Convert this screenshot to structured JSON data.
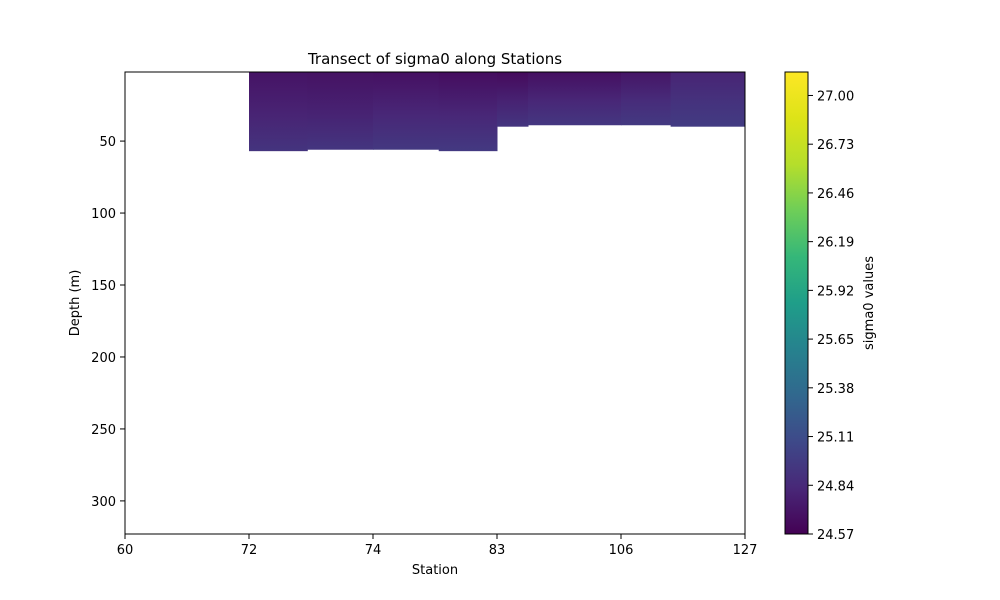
{
  "chart_data": {
    "type": "heatmap",
    "title": "Transect of sigma0 along Stations",
    "xlabel": "Station",
    "ylabel": "Depth (m)",
    "colorbar_label": "sigma0 values",
    "colormap": "viridis",
    "x_tick_labels": [
      "60",
      "72",
      "74",
      "83",
      "106",
      "127"
    ],
    "x_range": [
      0,
      5
    ],
    "y_ticks": [
      50,
      100,
      150,
      200,
      250,
      300
    ],
    "y_range": [
      323,
      2
    ],
    "y_inverted": true,
    "colorbar_ticks": [
      24.57,
      24.84,
      25.11,
      25.38,
      25.65,
      25.92,
      26.19,
      26.46,
      26.73,
      27.0
    ],
    "colorbar_range": [
      24.57,
      27.13
    ],
    "grid": false,
    "columns": [
      {
        "x_start": 1.0,
        "x_end": 1.47,
        "depth_max": 57,
        "top": 24.69,
        "mid": 24.8,
        "bottom": 24.92
      },
      {
        "x_start": 1.47,
        "x_end": 2.0,
        "depth_max": 56,
        "top": 24.68,
        "mid": 24.79,
        "bottom": 24.93
      },
      {
        "x_start": 2.0,
        "x_end": 2.53,
        "depth_max": 56,
        "top": 24.67,
        "mid": 24.82,
        "bottom": 24.95
      },
      {
        "x_start": 2.53,
        "x_end": 3.0,
        "depth_max": 57,
        "top": 24.65,
        "mid": 24.82,
        "bottom": 24.96
      },
      {
        "x_start": 3.0,
        "x_end": 3.25,
        "depth_max": 40,
        "top": 24.63,
        "mid": 24.79,
        "bottom": 24.93
      },
      {
        "x_start": 3.25,
        "x_end": 4.0,
        "depth_max": 39,
        "top": 24.66,
        "mid": 24.82,
        "bottom": 24.94
      },
      {
        "x_start": 4.0,
        "x_end": 4.4,
        "depth_max": 39,
        "top": 24.7,
        "mid": 24.86,
        "bottom": 24.96
      },
      {
        "x_start": 4.4,
        "x_end": 5.0,
        "depth_max": 40,
        "top": 24.8,
        "mid": 24.9,
        "bottom": 24.97
      }
    ]
  }
}
